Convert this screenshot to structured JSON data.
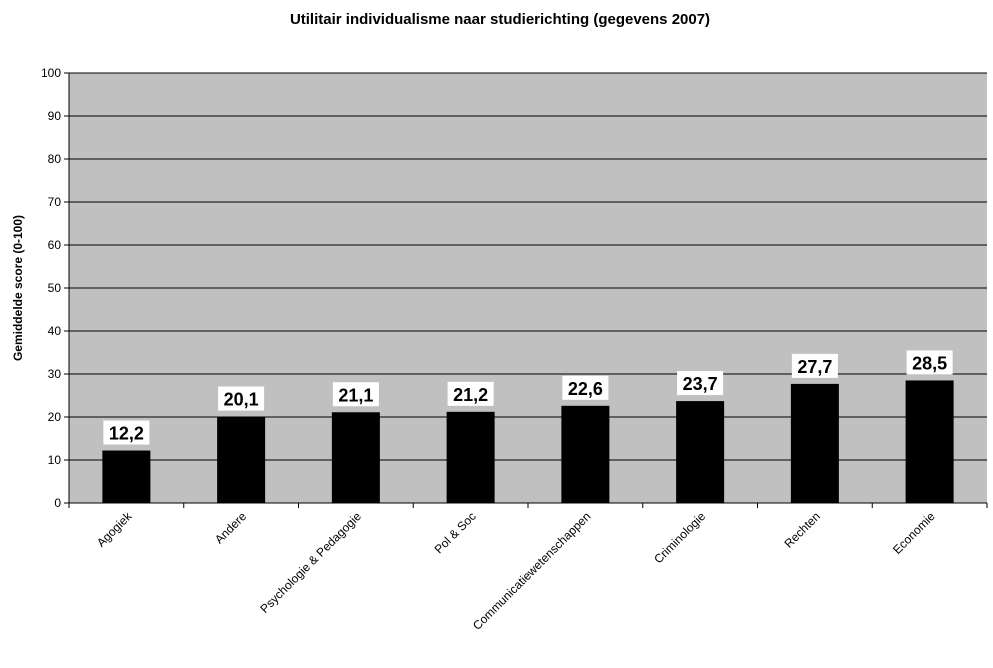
{
  "chart_data": {
    "type": "bar",
    "title": "Utilitair individualisme naar studierichting (gegevens 2007)",
    "xlabel": "",
    "ylabel": "Gemiddelde score (0-100)",
    "ylim": [
      0,
      100
    ],
    "yticks": [
      0,
      10,
      20,
      30,
      40,
      50,
      60,
      70,
      80,
      90,
      100
    ],
    "categories": [
      "Agogiek",
      "Andere",
      "Psychologie & Pedagogie",
      "Pol & Soc",
      "Communicatiewetenschappen",
      "Criminologie",
      "Rechten",
      "Economie"
    ],
    "values": [
      12.2,
      20.1,
      21.1,
      21.2,
      22.6,
      23.7,
      27.7,
      28.5
    ],
    "value_labels": [
      "12,2",
      "20,1",
      "21,1",
      "21,2",
      "22,6",
      "23,7",
      "27,7",
      "28,5"
    ],
    "grid": true,
    "legend": "none",
    "colors": {
      "plot_background": "#c0c0c0",
      "bar_fill": "#000000",
      "gridline": "#000000",
      "label_background": "#ffffff"
    }
  }
}
